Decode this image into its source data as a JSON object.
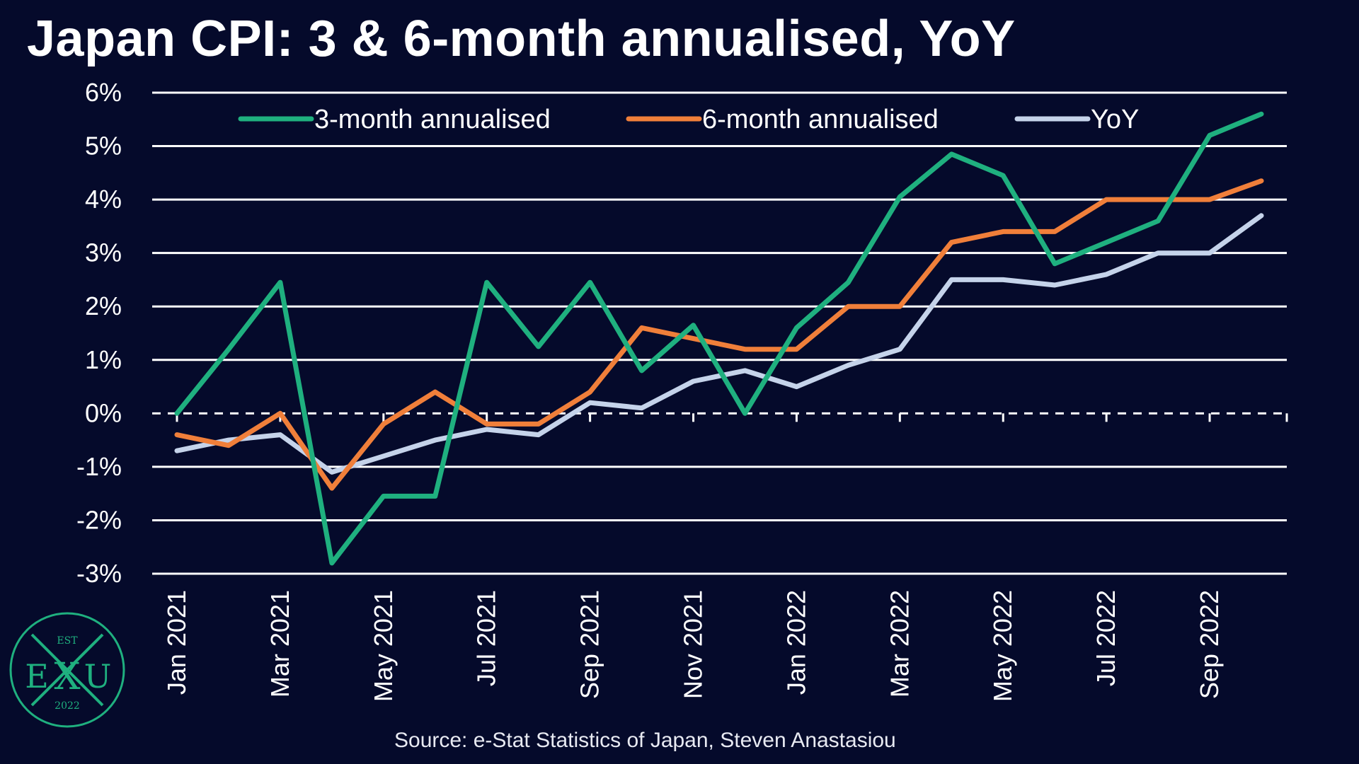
{
  "title": "Japan CPI: 3 & 6-month annualised, YoY",
  "source": "Source: e-Stat Statistics of Japan, Steven Anastasiou",
  "logo": {
    "est": "EST",
    "left": "E",
    "center": "X",
    "right": "U",
    "year": "2022"
  },
  "colors": {
    "background": "#050a2b",
    "grid": "#ffffff",
    "three_month": "#1fb07f",
    "six_month": "#f07f3a",
    "yoy": "#c5d3ea",
    "logo": "#1fb07f"
  },
  "chart_data": {
    "type": "line",
    "title": "Japan CPI: 3 & 6-month annualised, YoY",
    "xlabel": "",
    "ylabel": "",
    "ylim": [
      -3,
      6
    ],
    "yticks": [
      "-3%",
      "-2%",
      "-1%",
      "0%",
      "1%",
      "2%",
      "3%",
      "4%",
      "5%",
      "6%"
    ],
    "grid": true,
    "zero_line": "dashed",
    "legend_position": "top",
    "x": [
      "Jan 2021",
      "Feb 2021",
      "Mar 2021",
      "Apr 2021",
      "May 2021",
      "Jun 2021",
      "Jul 2021",
      "Aug 2021",
      "Sep 2021",
      "Oct 2021",
      "Nov 2021",
      "Dec 2021",
      "Jan 2022",
      "Feb 2022",
      "Mar 2022",
      "Apr 2022",
      "May 2022",
      "Jun 2022",
      "Jul 2022",
      "Aug 2022",
      "Sep 2022",
      "Oct 2022"
    ],
    "xtick_labels": [
      "Jan 2021",
      "Mar 2021",
      "May 2021",
      "Jul 2021",
      "Sep 2021",
      "Nov 2021",
      "Jan 2022",
      "Mar 2022",
      "May 2022",
      "Jul 2022",
      "Sep 2022"
    ],
    "series": [
      {
        "name": "3-month annualised",
        "color": "#1fb07f",
        "values": [
          0.0,
          1.2,
          2.45,
          -2.8,
          -1.55,
          -1.55,
          2.45,
          1.25,
          2.45,
          0.8,
          1.65,
          0.0,
          1.6,
          2.45,
          4.05,
          4.85,
          4.45,
          2.8,
          3.2,
          3.6,
          5.2,
          5.6
        ]
      },
      {
        "name": "6-month annualised",
        "color": "#f07f3a",
        "values": [
          -0.4,
          -0.6,
          0.0,
          -1.4,
          -0.2,
          0.4,
          -0.2,
          -0.2,
          0.4,
          1.6,
          1.4,
          1.2,
          1.2,
          2.0,
          2.0,
          3.2,
          3.4,
          3.4,
          4.0,
          4.0,
          4.0,
          4.35
        ]
      },
      {
        "name": "YoY",
        "color": "#c5d3ea",
        "values": [
          -0.7,
          -0.5,
          -0.4,
          -1.1,
          -0.8,
          -0.5,
          -0.3,
          -0.4,
          0.2,
          0.1,
          0.6,
          0.8,
          0.5,
          0.9,
          1.2,
          2.5,
          2.5,
          2.4,
          2.6,
          3.0,
          3.0,
          3.7
        ]
      }
    ]
  }
}
